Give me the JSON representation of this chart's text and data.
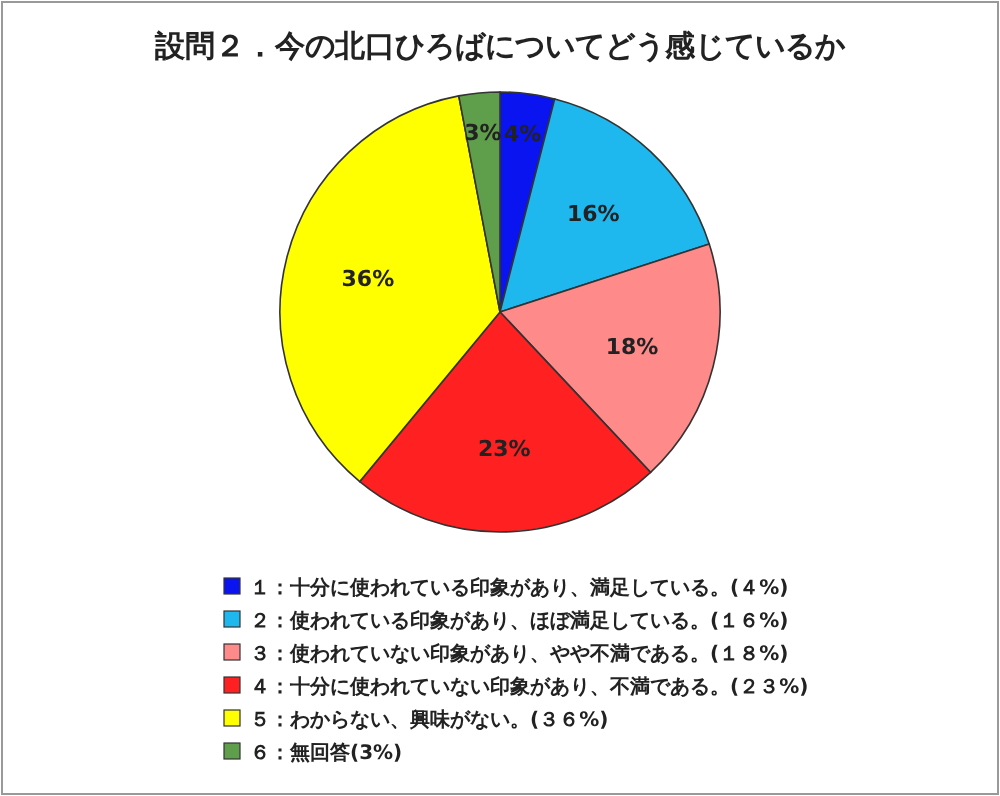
{
  "chart_data": {
    "type": "pie",
    "title": "設問２．今の北口ひろばについてどう感じているか",
    "categories": [
      "１：十分に使われている印象があり、満足している。(４%)",
      "２：使われている印象があり、ほぼ満足している。(１６%)",
      "３：使われていない印象があり、やや不満である。(１８%)",
      "４：十分に使われていない印象があり、不満である。(２３%)",
      "５：わからない、興味がない。(３６%)",
      "６：無回答(3%)"
    ],
    "values": [
      4,
      16,
      18,
      23,
      36,
      3
    ],
    "colors": [
      "#0a14f0",
      "#1eb8ef",
      "#ff8a8a",
      "#ff2121",
      "#ffff00",
      "#5f9e4b"
    ],
    "value_labels": [
      "4%",
      "16%",
      "18%",
      "23%",
      "36%",
      "3%"
    ],
    "legend": "bottom"
  }
}
